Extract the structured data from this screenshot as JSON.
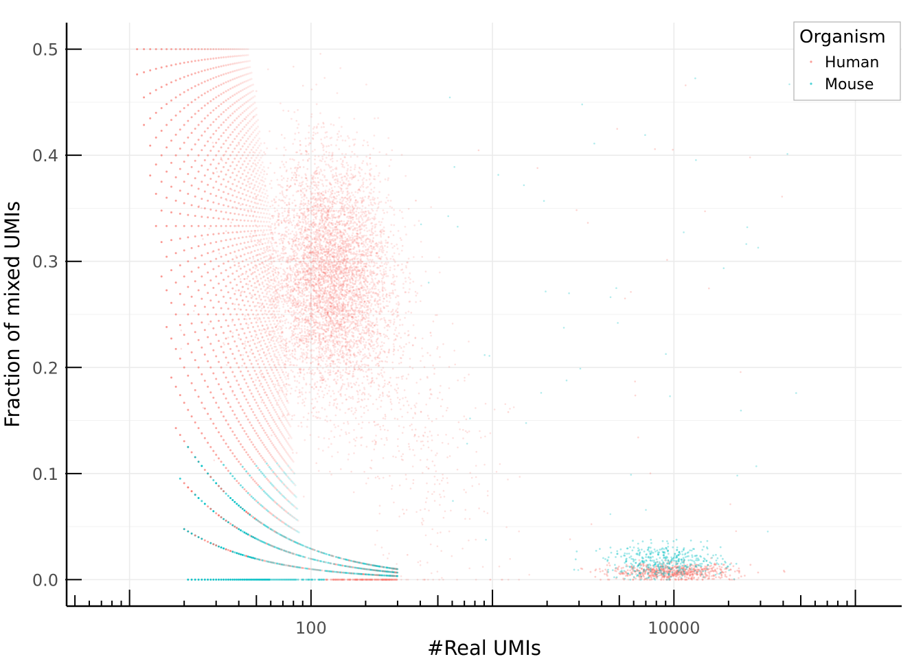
{
  "chart_data": {
    "type": "scatter",
    "xscale": "log10",
    "xlabel": "#Real UMIs",
    "ylabel": "Fraction of mixed UMIs",
    "xlim": [
      4.5,
      180000
    ],
    "ylim": [
      -0.025,
      0.525
    ],
    "x_major_ticks": [
      {
        "value": 100,
        "label": "100"
      },
      {
        "value": 10000,
        "label": "10000"
      }
    ],
    "y_ticks": [
      {
        "value": 0.0,
        "label": "0.0"
      },
      {
        "value": 0.1,
        "label": "0.1"
      },
      {
        "value": 0.2,
        "label": "0.2"
      },
      {
        "value": 0.3,
        "label": "0.3"
      },
      {
        "value": 0.4,
        "label": "0.4"
      },
      {
        "value": 0.5,
        "label": "0.5"
      }
    ],
    "grid": true,
    "legend": {
      "title": "Organism",
      "position": "top-right",
      "items": [
        {
          "label": "Human",
          "color": "#f8766d"
        },
        {
          "label": "Mouse",
          "color": "#00bfc4"
        }
      ]
    },
    "series": [
      {
        "name": "Human",
        "color": "#f8766d",
        "description_points": [
          {
            "x": 20,
            "y": 0.475
          },
          {
            "x": 20,
            "y": 0.333
          },
          {
            "x": 60,
            "y": 0.3
          },
          {
            "x": 130,
            "y": 0.28
          },
          {
            "x": 200,
            "y": 0.25
          },
          {
            "x": 500,
            "y": 0.15
          },
          {
            "x": 10000,
            "y": 0.005
          },
          {
            "x": 25000,
            "y": 0.003
          }
        ]
      },
      {
        "name": "Mouse",
        "color": "#00bfc4",
        "description_points": [
          {
            "x": 20,
            "y": 0.0
          },
          {
            "x": 20,
            "y": 0.048
          },
          {
            "x": 20,
            "y": 0.095
          },
          {
            "x": 22,
            "y": 0.5
          },
          {
            "x": 7000,
            "y": 0.02
          },
          {
            "x": 9000,
            "y": 0.012
          }
        ]
      }
    ]
  }
}
